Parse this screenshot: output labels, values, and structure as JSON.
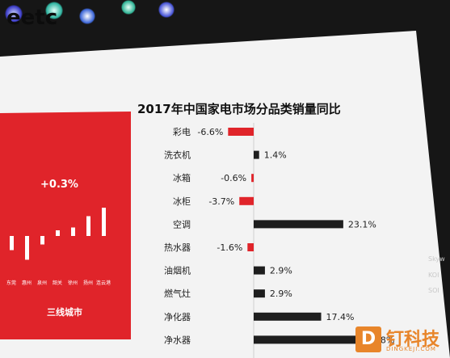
{
  "background_text": "eetc",
  "chart_data": {
    "type": "bar",
    "orientation": "horizontal",
    "title": "2017年中国家电市场分品类销量同比",
    "categories": [
      "彩电",
      "洗衣机",
      "冰箱",
      "冰柜",
      "空调",
      "热水器",
      "油烟机",
      "燃气灶",
      "净化器",
      "净水器"
    ],
    "values": [
      -6.6,
      1.4,
      -0.6,
      -3.7,
      23.1,
      -1.6,
      2.9,
      2.9,
      17.4,
      27.8
    ],
    "value_labels": [
      "-6.6%",
      "1.4%",
      "-0.6%",
      "-3.7%",
      "23.1%",
      "-1.6%",
      "2.9%",
      "2.9%",
      "17.4%",
      "27.8%"
    ],
    "colors": {
      "positive": "#1e1e1e",
      "negative": "#e0242a"
    }
  },
  "left_panel": {
    "type": "bar",
    "headline": "+0.3%",
    "caption": "三线城市",
    "categories": [
      "东莞",
      "惠州",
      "泉州",
      "韶关",
      "徐州",
      "扬州",
      "连云港"
    ],
    "values": [
      -2.5,
      -4.2,
      -1.5,
      1.0,
      1.5,
      3.5,
      5.0
    ],
    "color": "#e0242a"
  },
  "side_logos": [
    "Skyw",
    "KOI",
    "SOI"
  ],
  "watermark": {
    "mark": "D",
    "name": "钉科技",
    "url": "DINGKEJI.COM"
  }
}
